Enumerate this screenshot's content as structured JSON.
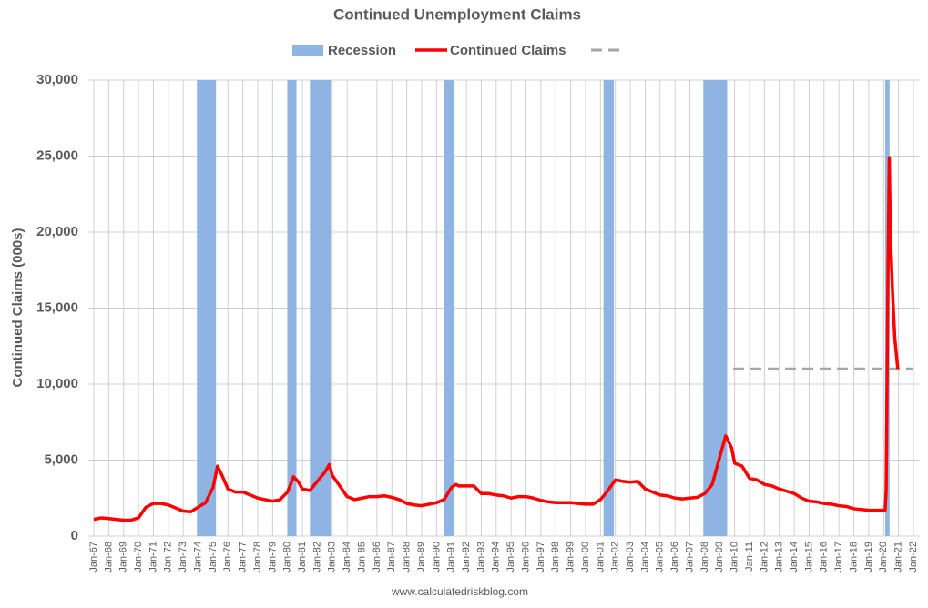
{
  "chart_data": {
    "type": "line",
    "title": "Continued Unemployment Claims",
    "y_label": "Continued Claims (000s)",
    "source": "www.calculatedriskblog.com",
    "x": [
      1967.0,
      1967.5,
      1968.0,
      1968.5,
      1969.0,
      1969.5,
      1970.0,
      1970.5,
      1971.0,
      1971.5,
      1972.0,
      1972.5,
      1973.0,
      1973.5,
      1974.0,
      1974.5,
      1975.0,
      1975.3,
      1975.6,
      1976.0,
      1976.5,
      1977.0,
      1977.5,
      1978.0,
      1978.5,
      1979.0,
      1979.5,
      1980.0,
      1980.4,
      1980.7,
      1981.0,
      1981.5,
      1982.0,
      1982.5,
      1982.8,
      1983.0,
      1983.5,
      1984.0,
      1984.5,
      1985.0,
      1985.5,
      1986.0,
      1986.5,
      1987.0,
      1987.5,
      1988.0,
      1988.5,
      1989.0,
      1989.5,
      1990.0,
      1990.5,
      1991.0,
      1991.3,
      1991.5,
      1992.0,
      1992.5,
      1993.0,
      1993.5,
      1994.0,
      1994.5,
      1995.0,
      1995.5,
      1996.0,
      1996.5,
      1997.0,
      1997.5,
      1998.0,
      1998.5,
      1999.0,
      1999.5,
      2000.0,
      2000.5,
      2001.0,
      2001.5,
      2002.0,
      2002.5,
      2003.0,
      2003.5,
      2004.0,
      2004.5,
      2005.0,
      2005.5,
      2006.0,
      2006.5,
      2007.0,
      2007.5,
      2008.0,
      2008.5,
      2009.0,
      2009.4,
      2009.8,
      2010.0,
      2010.5,
      2011.0,
      2011.5,
      2012.0,
      2012.5,
      2013.0,
      2013.5,
      2014.0,
      2014.5,
      2015.0,
      2015.5,
      2016.0,
      2016.5,
      2017.0,
      2017.5,
      2018.0,
      2018.5,
      2019.0,
      2019.5,
      2020.1,
      2020.17,
      2020.3,
      2020.38,
      2020.45,
      2020.6,
      2020.75,
      2020.95
    ],
    "series": [
      {
        "name": "Continued Claims",
        "color": "#ff0000",
        "values": [
          1100,
          1200,
          1150,
          1100,
          1050,
          1050,
          1200,
          1900,
          2150,
          2150,
          2050,
          1850,
          1650,
          1600,
          1900,
          2200,
          3200,
          4600,
          4000,
          3100,
          2900,
          2900,
          2700,
          2500,
          2400,
          2300,
          2400,
          2900,
          3900,
          3600,
          3100,
          3000,
          3600,
          4200,
          4700,
          4000,
          3300,
          2600,
          2400,
          2500,
          2600,
          2600,
          2650,
          2550,
          2400,
          2150,
          2050,
          2000,
          2100,
          2200,
          2400,
          3200,
          3400,
          3300,
          3300,
          3300,
          2800,
          2800,
          2700,
          2650,
          2500,
          2600,
          2600,
          2500,
          2350,
          2250,
          2200,
          2200,
          2200,
          2150,
          2100,
          2100,
          2400,
          3000,
          3700,
          3600,
          3550,
          3600,
          3100,
          2900,
          2700,
          2650,
          2500,
          2450,
          2500,
          2550,
          2800,
          3400,
          5200,
          6600,
          5800,
          4800,
          4600,
          3800,
          3700,
          3400,
          3300,
          3100,
          2950,
          2800,
          2500,
          2300,
          2250,
          2150,
          2100,
          2000,
          1950,
          1800,
          1750,
          1700,
          1700,
          1700,
          3000,
          18000,
          24900,
          20000,
          16000,
          13000,
          11000
        ]
      }
    ],
    "recessions": {
      "name": "Recession",
      "color": "#8eb4e3",
      "spans": [
        [
          1973.92,
          1975.2
        ],
        [
          1980.0,
          1980.6
        ],
        [
          1981.5,
          1982.9
        ],
        [
          1990.5,
          1991.2
        ],
        [
          2001.2,
          2001.9
        ],
        [
          2007.9,
          2009.5
        ],
        [
          2020.1,
          2020.4
        ]
      ]
    },
    "reference_line": {
      "value": 11000,
      "x_start": 2009.9,
      "x_end": 2022.0,
      "color": "#a6a6a6"
    },
    "xlim": [
      1967,
      2022
    ],
    "xticks": [
      {
        "value": 1967,
        "label": "Jan-67"
      },
      {
        "value": 1968,
        "label": "Jan-68"
      },
      {
        "value": 1969,
        "label": "Jan-69"
      },
      {
        "value": 1970,
        "label": "Jan-70"
      },
      {
        "value": 1971,
        "label": "Jan-71"
      },
      {
        "value": 1972,
        "label": "Jan-72"
      },
      {
        "value": 1973,
        "label": "Jan-73"
      },
      {
        "value": 1974,
        "label": "Jan-74"
      },
      {
        "value": 1975,
        "label": "Jan-75"
      },
      {
        "value": 1976,
        "label": "Jan-76"
      },
      {
        "value": 1977,
        "label": "Jan-77"
      },
      {
        "value": 1978,
        "label": "Jan-78"
      },
      {
        "value": 1979,
        "label": "Jan-79"
      },
      {
        "value": 1980,
        "label": "Jan-80"
      },
      {
        "value": 1981,
        "label": "Jan-81"
      },
      {
        "value": 1982,
        "label": "Jan-82"
      },
      {
        "value": 1983,
        "label": "Jan-83"
      },
      {
        "value": 1984,
        "label": "Jan-84"
      },
      {
        "value": 1985,
        "label": "Jan-85"
      },
      {
        "value": 1986,
        "label": "Jan-86"
      },
      {
        "value": 1987,
        "label": "Jan-87"
      },
      {
        "value": 1988,
        "label": "Jan-88"
      },
      {
        "value": 1989,
        "label": "Jan-89"
      },
      {
        "value": 1990,
        "label": "Jan-90"
      },
      {
        "value": 1991,
        "label": "Jan-91"
      },
      {
        "value": 1992,
        "label": "Jan-92"
      },
      {
        "value": 1993,
        "label": "Jan-93"
      },
      {
        "value": 1994,
        "label": "Jan-94"
      },
      {
        "value": 1995,
        "label": "Jan-95"
      },
      {
        "value": 1996,
        "label": "Jan-96"
      },
      {
        "value": 1997,
        "label": "Jan-97"
      },
      {
        "value": 1998,
        "label": "Jan-98"
      },
      {
        "value": 1999,
        "label": "Jan-99"
      },
      {
        "value": 2000,
        "label": "Jan-00"
      },
      {
        "value": 2001,
        "label": "Jan-01"
      },
      {
        "value": 2002,
        "label": "Jan-02"
      },
      {
        "value": 2003,
        "label": "Jan-03"
      },
      {
        "value": 2004,
        "label": "Jan-04"
      },
      {
        "value": 2005,
        "label": "Jan-05"
      },
      {
        "value": 2006,
        "label": "Jan-06"
      },
      {
        "value": 2007,
        "label": "Jan-07"
      },
      {
        "value": 2008,
        "label": "Jan-08"
      },
      {
        "value": 2009,
        "label": "Jan-09"
      },
      {
        "value": 2010,
        "label": "Jan-10"
      },
      {
        "value": 2011,
        "label": "Jan-11"
      },
      {
        "value": 2012,
        "label": "Jan-12"
      },
      {
        "value": 2013,
        "label": "Jan-13"
      },
      {
        "value": 2014,
        "label": "Jan-14"
      },
      {
        "value": 2015,
        "label": "Jan-15"
      },
      {
        "value": 2016,
        "label": "Jan-16"
      },
      {
        "value": 2017,
        "label": "Jan-17"
      },
      {
        "value": 2018,
        "label": "Jan-18"
      },
      {
        "value": 2019,
        "label": "Jan-19"
      },
      {
        "value": 2020,
        "label": "Jan-20"
      },
      {
        "value": 2021,
        "label": "Jan-21"
      },
      {
        "value": 2022,
        "label": "Jan-22"
      }
    ],
    "ylim": [
      0,
      30000
    ],
    "yticks": [
      0,
      {
        "value": 5000,
        "label": "5,000"
      },
      {
        "value": 10000,
        "label": "10,000"
      },
      {
        "value": 15000,
        "label": "15,000"
      },
      {
        "value": 20000,
        "label": "20,000"
      },
      {
        "value": 25000,
        "label": "25,000"
      },
      {
        "value": 30000,
        "label": "30,000"
      }
    ],
    "grid": true
  }
}
